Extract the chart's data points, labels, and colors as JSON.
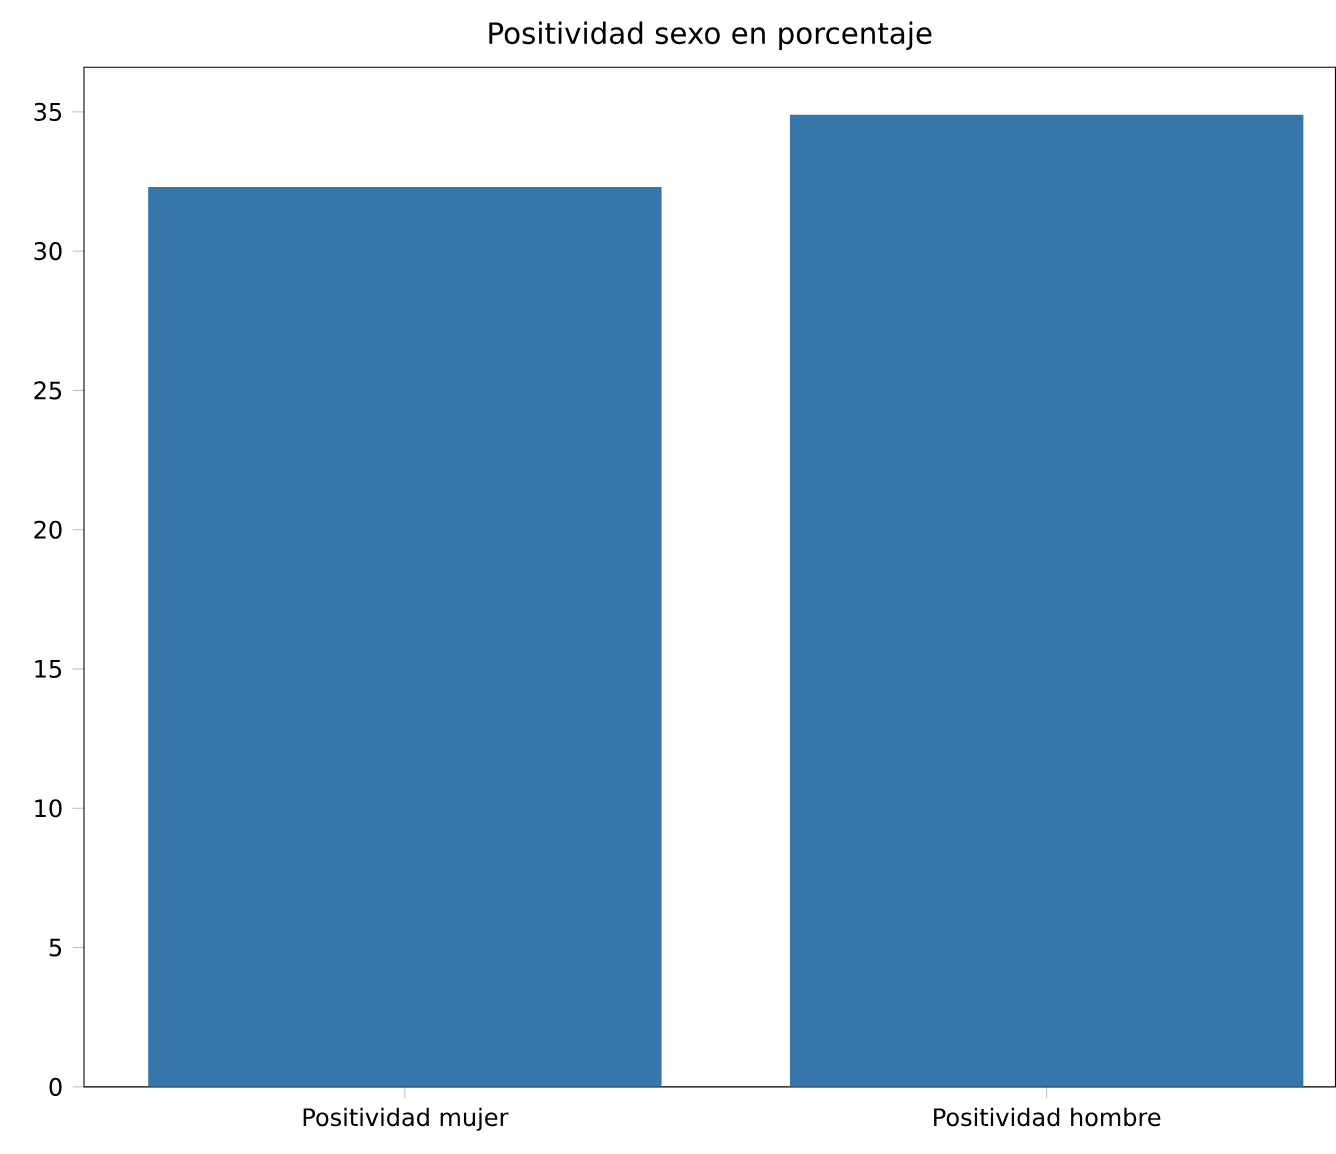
{
  "chart_data": {
    "type": "bar",
    "title": "Positividad sexo en porcentaje",
    "categories": [
      "Positividad mujer",
      "Positividad hombre"
    ],
    "values": [
      32.3,
      34.9
    ],
    "color": "#3776ab",
    "ylim": [
      0,
      36.6
    ],
    "yticks": [
      0,
      5,
      10,
      15,
      20,
      25,
      30,
      35
    ],
    "grid": false
  }
}
